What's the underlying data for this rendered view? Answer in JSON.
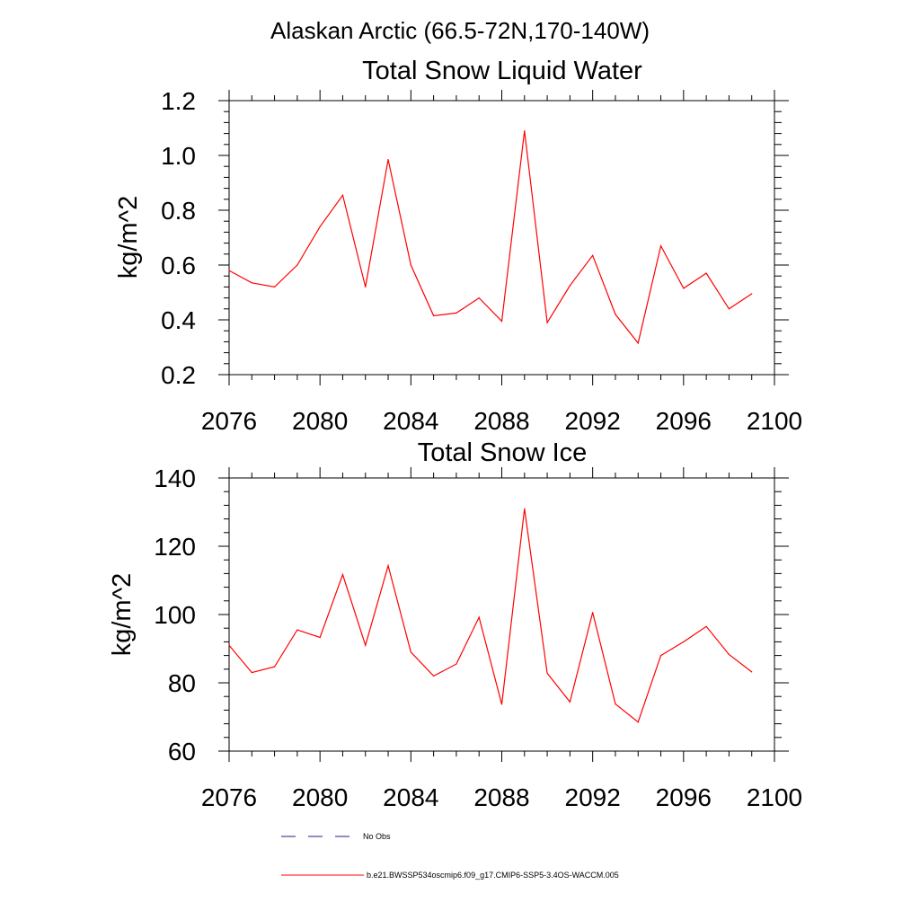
{
  "title": "Alaskan Arctic (66.5-72N,170-140W)",
  "colors": {
    "series": "#ff0000",
    "obs": "#1c1c8c",
    "axis": "#000000"
  },
  "legend": {
    "items": [
      {
        "label": "No Obs",
        "style": "dashed",
        "color": "#1c1c8c"
      },
      {
        "label": "b.e21.BWSSP534oscmip6.f09_g17.CMIP6-SSP5-3.4OS-WACCM.005",
        "style": "solid",
        "color": "#ff0000"
      }
    ]
  },
  "chart_data": [
    {
      "type": "line",
      "title": "Total Snow Liquid Water",
      "xlabel": "",
      "ylabel": "kg/m^2",
      "xlim": [
        2076,
        2100
      ],
      "ylim": [
        0.2,
        1.2
      ],
      "xticks": [
        "2076",
        "2080",
        "2084",
        "2088",
        "2092",
        "2096",
        "2100"
      ],
      "yticks": [
        "0.2",
        "0.4",
        "0.6",
        "0.8",
        "1.0",
        "1.2"
      ],
      "x": [
        2076,
        2077,
        2078,
        2079,
        2080,
        2081,
        2082,
        2083,
        2084,
        2085,
        2086,
        2087,
        2088,
        2089,
        2090,
        2091,
        2092,
        2093,
        2094,
        2095,
        2096,
        2097,
        2098,
        2099
      ],
      "series": [
        {
          "name": "b.e21.BWSSP534oscmip6.f09_g17.CMIP6-SSP5-3.4OS-WACCM.005",
          "values": [
            0.58,
            0.535,
            0.52,
            0.6,
            0.74,
            0.855,
            0.52,
            0.985,
            0.6,
            0.415,
            0.425,
            0.48,
            0.395,
            1.09,
            0.39,
            0.525,
            0.635,
            0.42,
            0.315,
            0.67,
            0.515,
            0.57,
            0.44,
            0.495
          ]
        }
      ]
    },
    {
      "type": "line",
      "title": "Total Snow Ice",
      "xlabel": "",
      "ylabel": "kg/m^2",
      "xlim": [
        2076,
        2100
      ],
      "ylim": [
        60,
        140
      ],
      "xticks": [
        "2076",
        "2080",
        "2084",
        "2088",
        "2092",
        "2096",
        "2100"
      ],
      "yticks": [
        "60",
        "80",
        "100",
        "120",
        "140"
      ],
      "x": [
        2076,
        2077,
        2078,
        2079,
        2080,
        2081,
        2082,
        2083,
        2084,
        2085,
        2086,
        2087,
        2088,
        2089,
        2090,
        2091,
        2092,
        2093,
        2094,
        2095,
        2096,
        2097,
        2098,
        2099
      ],
      "series": [
        {
          "name": "b.e21.BWSSP534oscmip6.f09_g17.CMIP6-SSP5-3.4OS-WACCM.005",
          "values": [
            91,
            83,
            84.7,
            95.5,
            93.3,
            111.7,
            91,
            114.3,
            89,
            82,
            85.5,
            99.2,
            73.7,
            131,
            82.8,
            74.4,
            100.6,
            73.8,
            68.5,
            88,
            92,
            96.5,
            88.3,
            83.2
          ]
        }
      ]
    }
  ]
}
